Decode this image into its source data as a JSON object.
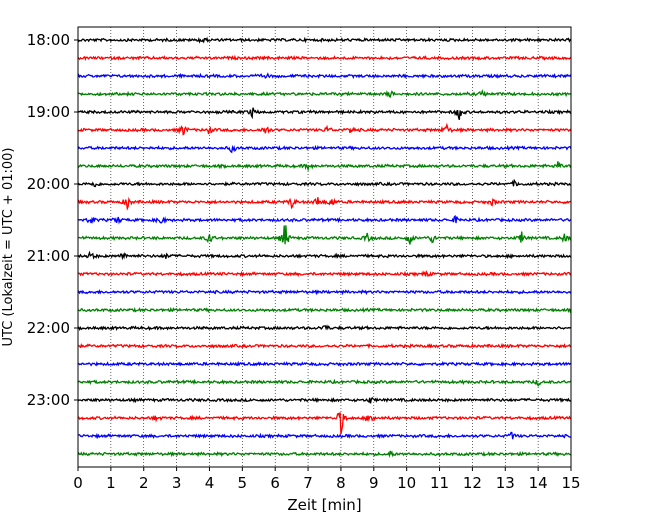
{
  "chart_data": {
    "type": "line",
    "xlabel": "Zeit  [min]",
    "ylabel": "UTC (Lokalzeit = UTC + 01:00)",
    "xlim": [
      0,
      15
    ],
    "x_ticks": [
      "0",
      "1",
      "2",
      "3",
      "4",
      "5",
      "6",
      "7",
      "8",
      "9",
      "10",
      "11",
      "12",
      "13",
      "14",
      "15"
    ],
    "y_ticks": [
      "18:00",
      "19:00",
      "20:00",
      "21:00",
      "22:00",
      "23:00"
    ],
    "grid": "vertical-dotted",
    "colors": [
      "#000000",
      "#ff0000",
      "#0000ff",
      "#008000"
    ],
    "rows": [
      {
        "time": "18:00",
        "color": "#000000",
        "events": [
          {
            "t": 3.8,
            "a": 0.4
          }
        ]
      },
      {
        "time": "18:15",
        "color": "#ff0000",
        "events": []
      },
      {
        "time": "18:30",
        "color": "#0000ff",
        "events": [
          {
            "t": 5.7,
            "a": 0.3
          }
        ]
      },
      {
        "time": "18:45",
        "color": "#008000",
        "events": [
          {
            "t": 9.5,
            "a": 0.3
          },
          {
            "t": 12.3,
            "a": 0.3
          }
        ]
      },
      {
        "time": "19:00",
        "color": "#000000",
        "events": [
          {
            "t": 5.3,
            "a": 0.5
          },
          {
            "t": 11.6,
            "a": 0.9
          }
        ]
      },
      {
        "time": "19:15",
        "color": "#ff0000",
        "events": [
          {
            "t": 3.2,
            "a": 0.7
          },
          {
            "t": 4.0,
            "a": 0.4
          },
          {
            "t": 5.7,
            "a": 0.6
          },
          {
            "t": 7.6,
            "a": 0.4
          },
          {
            "t": 8.3,
            "a": 0.4
          },
          {
            "t": 11.2,
            "a": 0.7
          }
        ]
      },
      {
        "time": "19:30",
        "color": "#0000ff",
        "events": [
          {
            "t": 4.7,
            "a": 0.5
          }
        ]
      },
      {
        "time": "19:45",
        "color": "#008000",
        "events": [
          {
            "t": 7.0,
            "a": 0.3
          },
          {
            "t": 14.6,
            "a": 0.4
          }
        ]
      },
      {
        "time": "20:00",
        "color": "#000000",
        "events": [
          {
            "t": 0.5,
            "a": 0.3
          },
          {
            "t": 13.3,
            "a": 0.3
          }
        ]
      },
      {
        "time": "20:15",
        "color": "#ff0000",
        "events": [
          {
            "t": 1.5,
            "a": 0.7
          },
          {
            "t": 6.5,
            "a": 0.6
          },
          {
            "t": 7.3,
            "a": 0.6
          },
          {
            "t": 7.7,
            "a": 0.6
          },
          {
            "t": 12.6,
            "a": 0.3
          }
        ]
      },
      {
        "time": "20:30",
        "color": "#0000ff",
        "events": [
          {
            "t": 0.4,
            "a": 0.4
          },
          {
            "t": 1.2,
            "a": 0.4
          },
          {
            "t": 2.5,
            "a": 0.5
          },
          {
            "t": 11.5,
            "a": 0.4
          }
        ]
      },
      {
        "time": "20:45",
        "color": "#008000",
        "events": [
          {
            "t": 4.0,
            "a": 0.6
          },
          {
            "t": 6.3,
            "a": 1.8
          },
          {
            "t": 8.8,
            "a": 0.4
          },
          {
            "t": 10.1,
            "a": 0.6
          },
          {
            "t": 10.8,
            "a": 0.5
          },
          {
            "t": 13.5,
            "a": 0.6
          },
          {
            "t": 14.8,
            "a": 0.4
          }
        ]
      },
      {
        "time": "21:00",
        "color": "#000000",
        "events": [
          {
            "t": 0.4,
            "a": 0.5
          },
          {
            "t": 1.4,
            "a": 0.4
          },
          {
            "t": 2.7,
            "a": 0.3
          }
        ]
      },
      {
        "time": "21:15",
        "color": "#ff0000",
        "events": [
          {
            "t": 10.6,
            "a": 0.3
          }
        ]
      },
      {
        "time": "21:30",
        "color": "#0000ff",
        "events": []
      },
      {
        "time": "21:45",
        "color": "#008000",
        "events": []
      },
      {
        "time": "22:00",
        "color": "#000000",
        "events": [
          {
            "t": 7.5,
            "a": 0.4
          }
        ]
      },
      {
        "time": "22:15",
        "color": "#ff0000",
        "events": []
      },
      {
        "time": "22:30",
        "color": "#0000ff",
        "events": []
      },
      {
        "time": "22:45",
        "color": "#008000",
        "events": [
          {
            "t": 14.0,
            "a": 0.3
          }
        ]
      },
      {
        "time": "23:00",
        "color": "#000000",
        "events": [
          {
            "t": 8.9,
            "a": 0.3
          }
        ]
      },
      {
        "time": "23:15",
        "color": "#ff0000",
        "events": [
          {
            "t": 2.4,
            "a": 0.3
          },
          {
            "t": 8.0,
            "a": 1.6
          },
          {
            "t": 8.9,
            "a": 0.7
          }
        ]
      },
      {
        "time": "23:30",
        "color": "#0000ff",
        "events": [
          {
            "t": 13.2,
            "a": 0.4
          }
        ]
      },
      {
        "time": "23:45",
        "color": "#008000",
        "events": [
          {
            "t": 9.5,
            "a": 0.3
          }
        ]
      }
    ]
  }
}
